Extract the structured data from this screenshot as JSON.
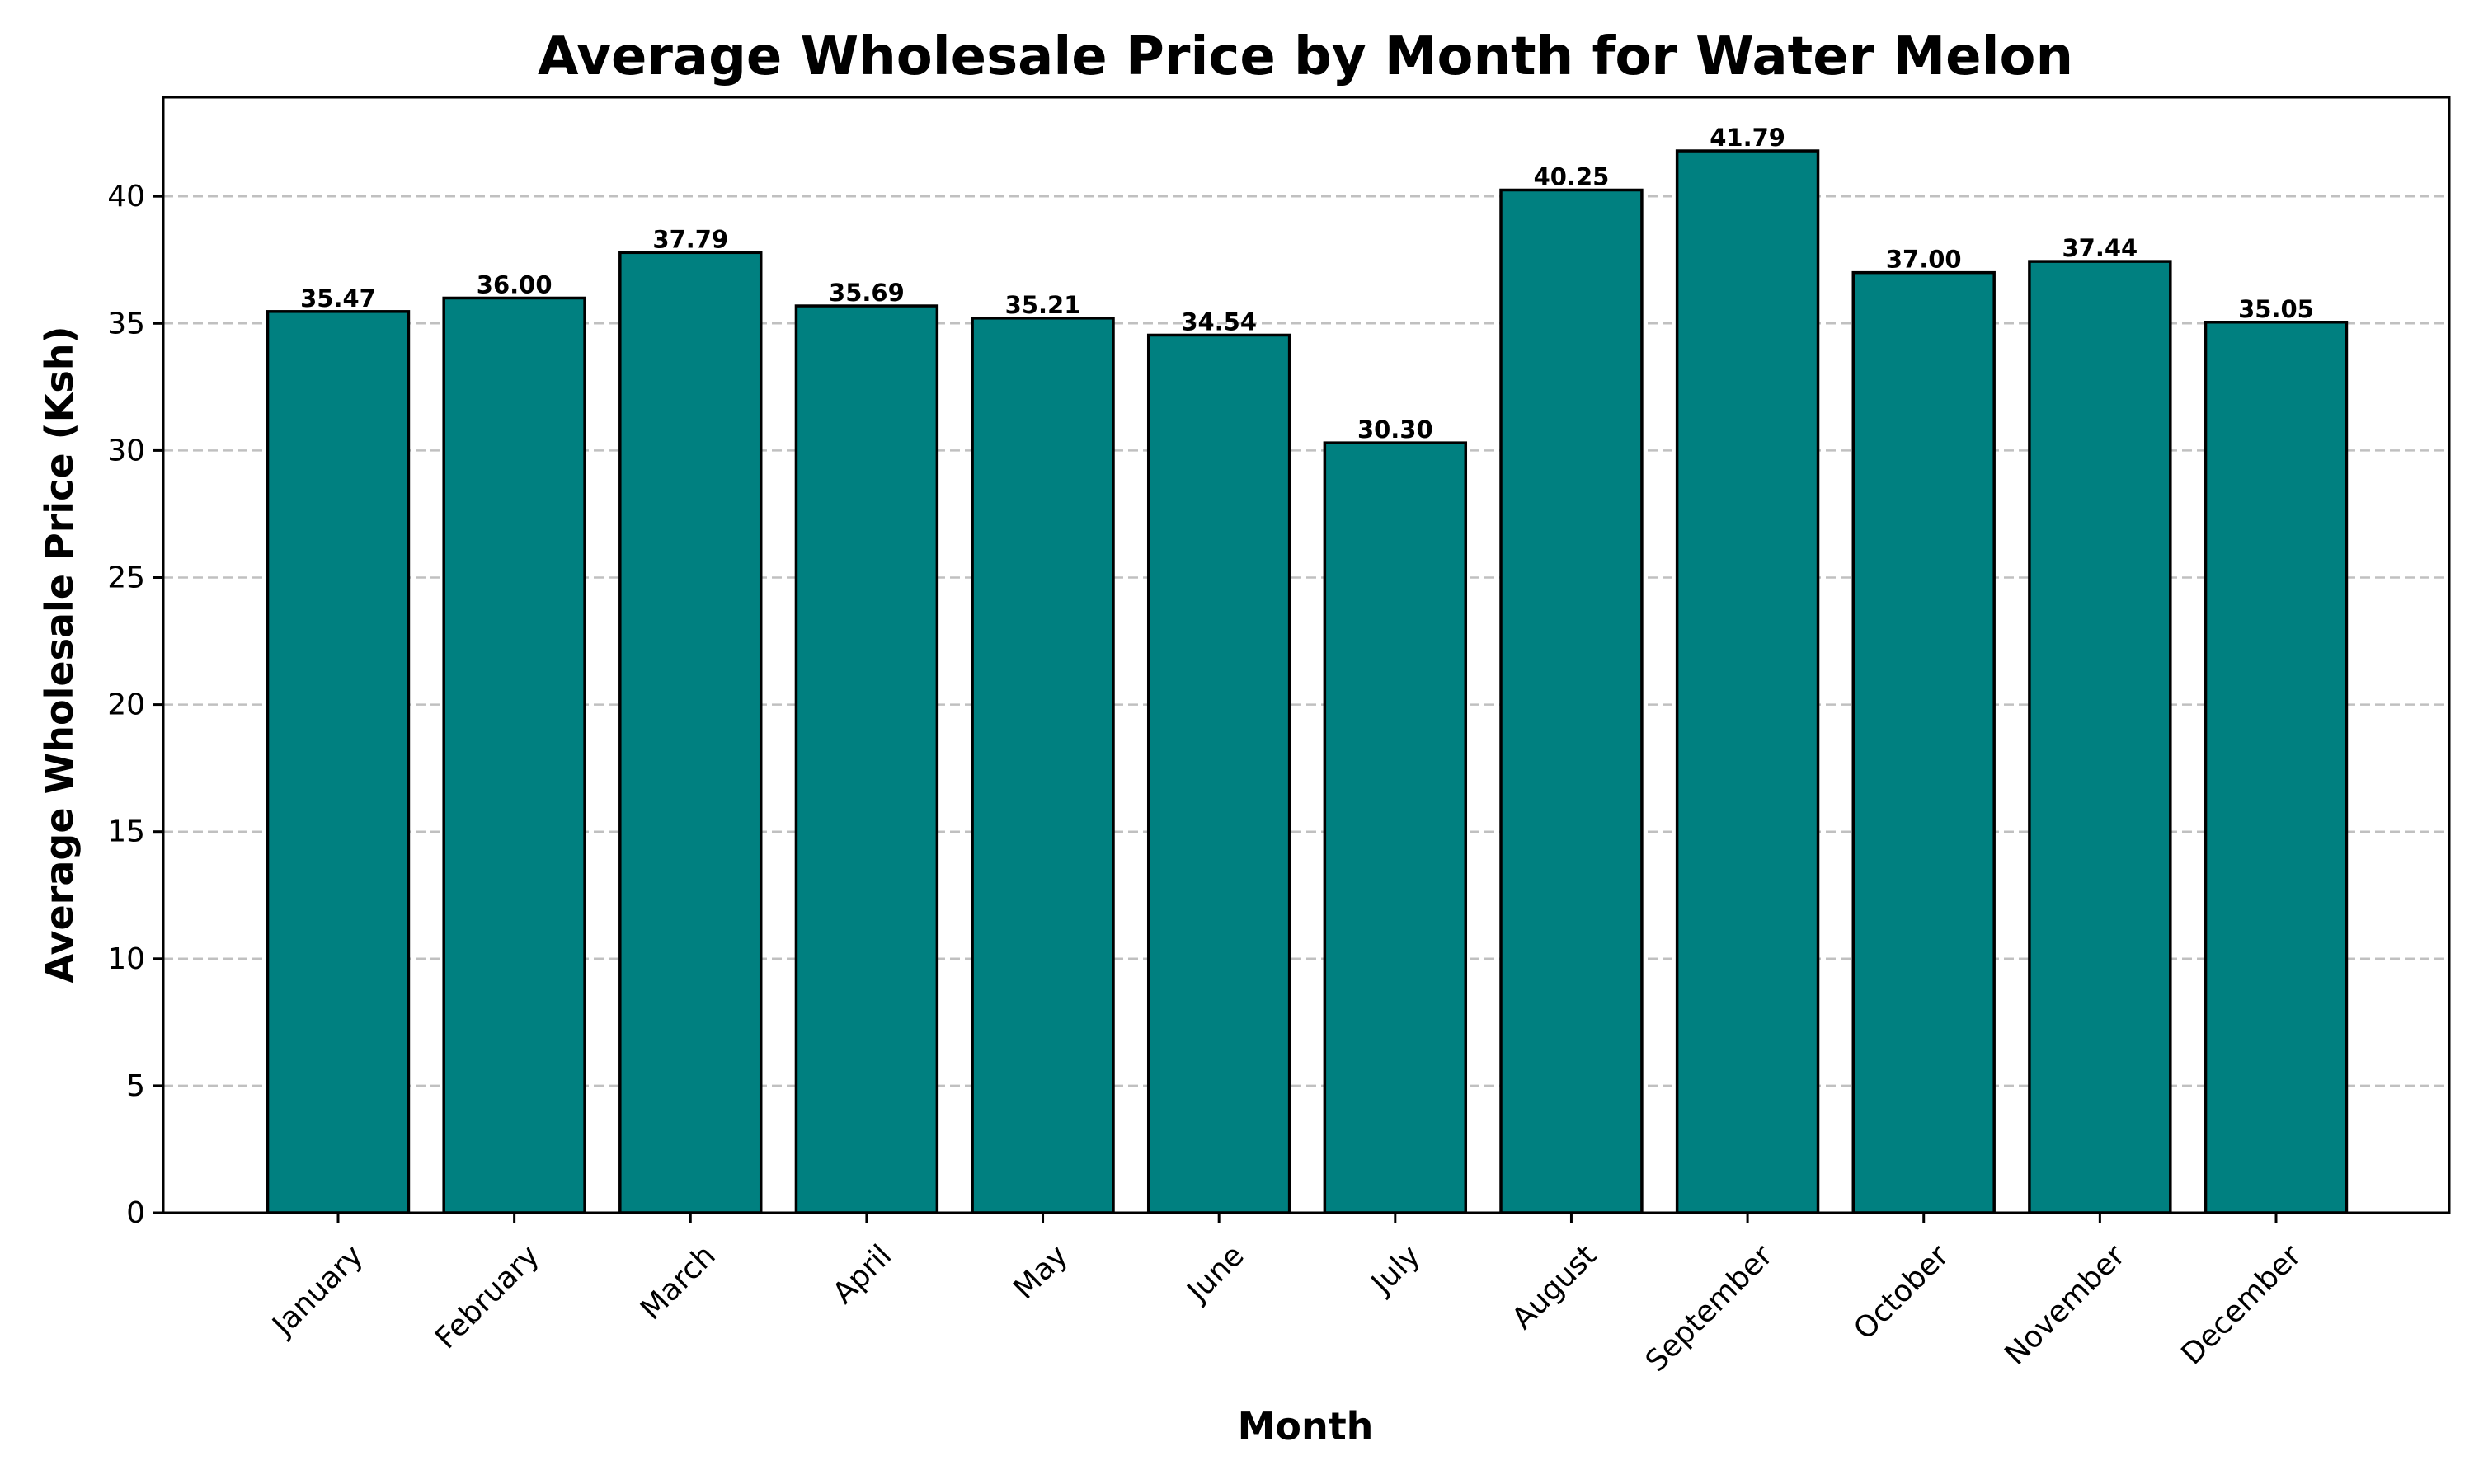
{
  "chart_data": {
    "type": "bar",
    "title": "Average Wholesale Price by Month for Water Melon",
    "xlabel": "Month",
    "ylabel": "Average Wholesale Price (Ksh)",
    "categories": [
      "January",
      "February",
      "March",
      "April",
      "May",
      "June",
      "July",
      "August",
      "September",
      "October",
      "November",
      "December"
    ],
    "values": [
      35.47,
      36.0,
      37.79,
      35.69,
      35.21,
      34.54,
      30.3,
      40.25,
      41.79,
      37.0,
      37.44,
      35.05
    ],
    "value_labels": [
      "35.47",
      "36.00",
      "37.79",
      "35.69",
      "35.21",
      "34.54",
      "30.30",
      "40.25",
      "41.79",
      "37.00",
      "37.44",
      "35.05"
    ],
    "yticks": [
      "0",
      "5",
      "10",
      "15",
      "20",
      "25",
      "30",
      "35",
      "40"
    ],
    "ylim": [
      0,
      43.9
    ],
    "grid": "y dashed",
    "bar_color": "#008080",
    "edge_color": "#000000"
  }
}
